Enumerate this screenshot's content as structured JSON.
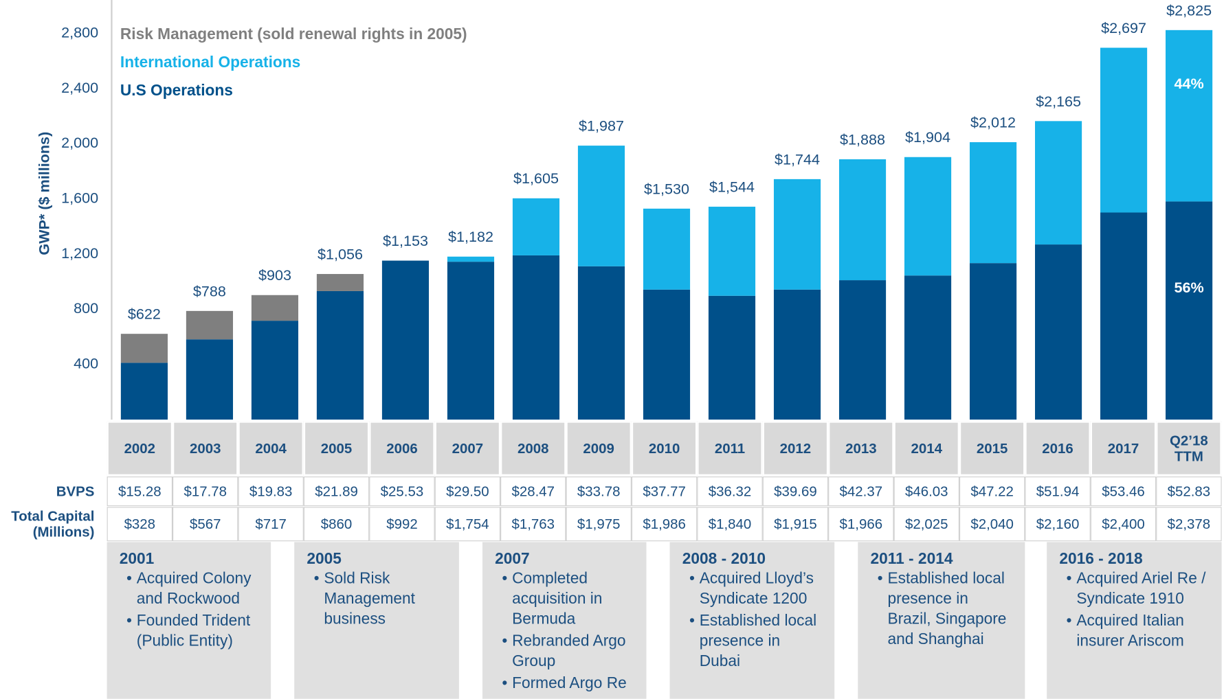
{
  "chart_data": {
    "type": "bar",
    "stacked": true,
    "ylabel": "GWP* ($ millions)",
    "categories": [
      "2002",
      "2003",
      "2004",
      "2005",
      "2006",
      "2007",
      "2008",
      "2009",
      "2010",
      "2011",
      "2012",
      "2013",
      "2014",
      "2015",
      "2016",
      "2017",
      "Q2’18\nTTM"
    ],
    "series": [
      {
        "name": "U.S Operations",
        "color": "#00508a",
        "values": [
          412,
          582,
          717,
          932,
          1153,
          1145,
          1191,
          1112,
          943,
          898,
          943,
          1011,
          1045,
          1135,
          1270,
          1502,
          1582
        ],
        "value_labels": [
          null,
          null,
          null,
          null,
          null,
          null,
          null,
          null,
          null,
          null,
          null,
          null,
          null,
          null,
          null,
          null,
          "56%"
        ]
      },
      {
        "name": "International Operations",
        "color": "#17b2e8",
        "values": [
          0,
          0,
          0,
          0,
          0,
          37,
          414,
          875,
          587,
          646,
          801,
          877,
          859,
          877,
          895,
          1195,
          1243
        ],
        "value_labels": [
          null,
          null,
          null,
          null,
          null,
          null,
          null,
          null,
          null,
          null,
          null,
          null,
          null,
          null,
          null,
          null,
          "44%"
        ]
      },
      {
        "name": "Risk Management (sold renewal rights in 2005)",
        "color": "#7f7f7f",
        "values": [
          210,
          206,
          186,
          124,
          0,
          0,
          0,
          0,
          0,
          0,
          0,
          0,
          0,
          0,
          0,
          0,
          0
        ]
      }
    ],
    "totals": [
      622,
      788,
      903,
      1056,
      1153,
      1182,
      1605,
      1987,
      1530,
      1544,
      1744,
      1888,
      1904,
      2012,
      2165,
      2697,
      2825
    ],
    "total_labels": [
      "$622",
      "$788",
      "$903",
      "$1,056",
      "$1,153",
      "$1,182",
      "$1,605",
      "$1,987",
      "$1,530",
      "$1,544",
      "$1,744",
      "$1,888",
      "$1,904",
      "$2,012",
      "$2,165",
      "$2,697",
      "$2,825"
    ],
    "ylim": [
      0,
      2800
    ],
    "yticks": [
      400,
      800,
      {
        "value": 1200,
        "label": "1,200"
      },
      {
        "value": 1600,
        "label": "1,600"
      },
      {
        "value": 2000,
        "label": "2,000"
      },
      {
        "value": 2400,
        "label": "2,400"
      },
      {
        "value": 2800,
        "label": "2,800"
      }
    ],
    "grid": false,
    "legend": "top-left"
  },
  "table": {
    "rows": [
      {
        "label": "BVPS",
        "values": [
          "$15.28",
          "$17.78",
          "$19.83",
          "$21.89",
          "$25.53",
          "$29.50",
          "$28.47",
          "$33.78",
          "$37.77",
          "$36.32",
          "$39.69",
          "$42.37",
          "$46.03",
          "$47.22",
          "$51.94",
          "$53.46",
          "$52.83"
        ]
      },
      {
        "label": "Total Capital\n(Millions)",
        "values": [
          "$328",
          "$567",
          "$717",
          "$860",
          "$992",
          "$1,754",
          "$1,763",
          "$1,975",
          "$1,986",
          "$1,840",
          "$1,915",
          "$1,966",
          "$2,025",
          "$2,040",
          "$2,160",
          "$2,400",
          "$2,378"
        ]
      }
    ]
  },
  "timeline": [
    {
      "title": "2001",
      "items": [
        "Acquired Colony and Rockwood",
        "Founded Trident (Public Entity)"
      ]
    },
    {
      "title": "2005",
      "items": [
        "Sold Risk Management business"
      ]
    },
    {
      "title": "2007",
      "items": [
        "Completed acquisition in Bermuda",
        "Rebranded Argo Group",
        "Formed Argo Re"
      ]
    },
    {
      "title": "2008 - 2010",
      "items": [
        "Acquired Lloyd’s Syndicate 1200",
        "Established local presence in Dubai"
      ]
    },
    {
      "title": "2011 - 2014",
      "items": [
        "Established local presence in Brazil, Singapore and Shanghai"
      ]
    },
    {
      "title": "2016 - 2018",
      "items": [
        "Acquired Ariel Re / Syndicate 1910",
        "Acquired Italian insurer Ariscom"
      ]
    }
  ]
}
